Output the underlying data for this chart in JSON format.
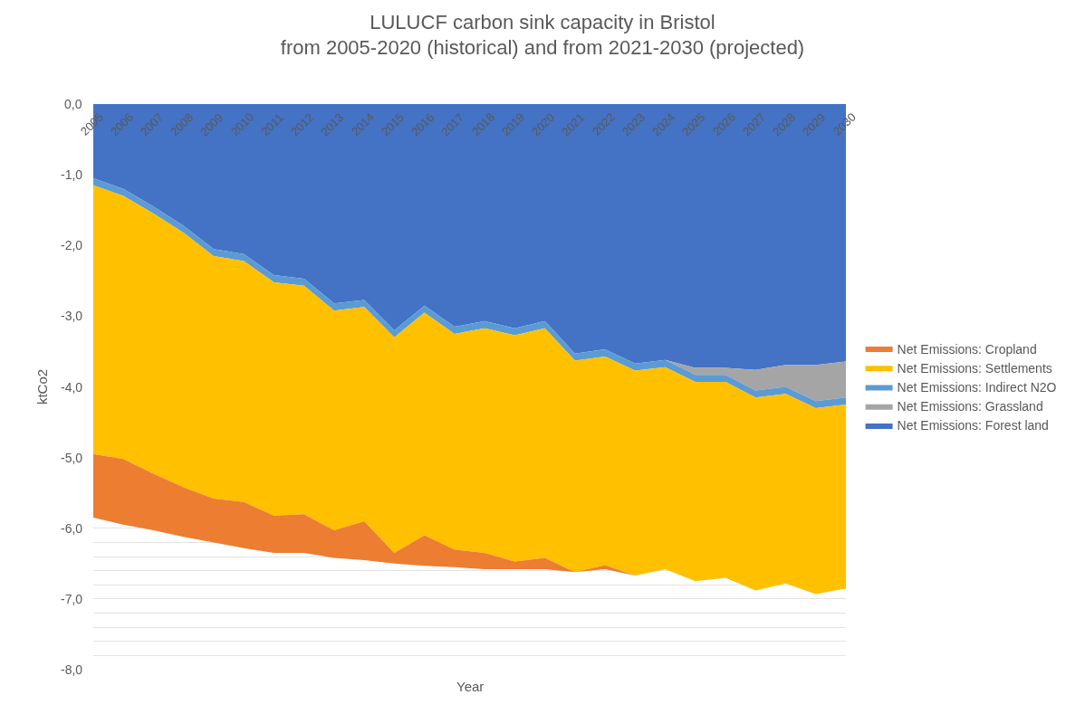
{
  "chart_data": {
    "type": "area",
    "stacked": true,
    "title": "LULUCF carbon sink capacity in Bristol\nfrom 2005-2020 (historical) and from 2021-2030 (projected)",
    "xlabel": "Year",
    "ylabel": "ktCo2",
    "categories": [
      "2005",
      "2006",
      "2007",
      "2008",
      "2009",
      "2010",
      "2011",
      "2012",
      "2013",
      "2014",
      "2015",
      "2016",
      "2017",
      "2018",
      "2019",
      "2020",
      "2021",
      "2022",
      "2023",
      "2024",
      "2025",
      "2026",
      "2027",
      "2028",
      "2029",
      "2030"
    ],
    "series": [
      {
        "name": "Net Emissions: Forest land",
        "color": "#4472c4",
        "values": [
          -1.05,
          -1.2,
          -1.45,
          -1.72,
          -2.05,
          -2.12,
          -2.42,
          -2.47,
          -2.82,
          -2.77,
          -3.2,
          -2.85,
          -3.15,
          -3.07,
          -3.17,
          -3.07,
          -3.53,
          -3.47,
          -3.67,
          -3.62,
          -3.73,
          -3.73,
          -3.76,
          -3.69,
          -3.69,
          -3.64
        ]
      },
      {
        "name": "Net Emissions: Grassland",
        "color": "#a5a5a5",
        "values": [
          0,
          0,
          0,
          0,
          0,
          0,
          0,
          0,
          0,
          0,
          0,
          0,
          0,
          0,
          0,
          0,
          0,
          0,
          0,
          0,
          -0.1,
          -0.1,
          -0.29,
          -0.31,
          -0.51,
          -0.51
        ]
      },
      {
        "name": "Net Emissions: Indirect N2O",
        "color": "#5b9bd5",
        "values": [
          -0.1,
          -0.1,
          -0.1,
          -0.1,
          -0.1,
          -0.1,
          -0.1,
          -0.1,
          -0.1,
          -0.1,
          -0.1,
          -0.1,
          -0.1,
          -0.1,
          -0.1,
          -0.1,
          -0.1,
          -0.1,
          -0.1,
          -0.1,
          -0.1,
          -0.1,
          -0.1,
          -0.1,
          -0.1,
          -0.1
        ]
      },
      {
        "name": "Net Emissions: Settlements",
        "color": "#ffc000",
        "values": [
          -3.8,
          -3.72,
          -3.68,
          -3.6,
          -3.43,
          -3.41,
          -3.3,
          -3.23,
          -3.11,
          -3.03,
          -3.05,
          -3.15,
          -3.05,
          -3.18,
          -3.2,
          -3.25,
          -2.99,
          -2.95,
          -2.9,
          -2.86,
          -2.82,
          -2.77,
          -2.73,
          -2.68,
          -2.63,
          -2.6
        ]
      },
      {
        "name": "Net Emissions: Cropland",
        "color": "#ed7d31",
        "values": [
          -0.9,
          -0.93,
          -0.8,
          -0.7,
          -0.62,
          -0.65,
          -0.53,
          -0.55,
          -0.39,
          -0.55,
          -0.15,
          -0.43,
          -0.25,
          -0.23,
          -0.11,
          -0.16,
          0,
          -0.06,
          0,
          0,
          0,
          0,
          0,
          0,
          0,
          0
        ]
      }
    ],
    "ylim": [
      -8,
      0
    ],
    "yticks": [
      {
        "value": 0,
        "label": "0,0"
      },
      {
        "value": -1,
        "label": "-1,0"
      },
      {
        "value": -2,
        "label": "-2,0"
      },
      {
        "value": -3,
        "label": "-3,0"
      },
      {
        "value": -4,
        "label": "-4,0"
      },
      {
        "value": -5,
        "label": "-5,0"
      },
      {
        "value": -6,
        "label": "-6,0"
      },
      {
        "value": -7,
        "label": "-7,0"
      },
      {
        "value": -8,
        "label": "-8,0"
      },
      {
        "value": -6.2,
        "label": null
      },
      {
        "value": -6.4,
        "label": null
      },
      {
        "value": -6.6,
        "label": null
      },
      {
        "value": -6.8,
        "label": null
      },
      {
        "value": -7.2,
        "label": null
      },
      {
        "value": -7.4,
        "label": null
      },
      {
        "value": -7.6,
        "label": null
      },
      {
        "value": -7.8,
        "label": null
      }
    ],
    "grid": "y",
    "legend": "right"
  }
}
